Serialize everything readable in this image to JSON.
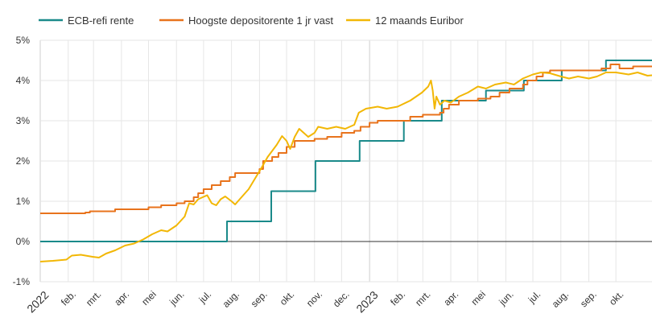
{
  "chart_data": {
    "type": "line",
    "ylim": [
      -1,
      5
    ],
    "y_ticks": [
      "-1%",
      "0%",
      "1%",
      "2%",
      "3%",
      "4%",
      "5%"
    ],
    "y_tick_values": [
      -1,
      0,
      1,
      2,
      3,
      4,
      5
    ],
    "x_range": [
      "2022-01-01",
      "2023-11-10"
    ],
    "x_ticks": [
      {
        "label": "2022",
        "date": "2022-01-01",
        "year": true
      },
      {
        "label": "feb.",
        "date": "2022-02-01"
      },
      {
        "label": "mrt.",
        "date": "2022-03-01"
      },
      {
        "label": "apr.",
        "date": "2022-04-01"
      },
      {
        "label": "mei",
        "date": "2022-05-01"
      },
      {
        "label": "jun.",
        "date": "2022-06-01"
      },
      {
        "label": "jul.",
        "date": "2022-07-01"
      },
      {
        "label": "aug.",
        "date": "2022-08-01"
      },
      {
        "label": "sep.",
        "date": "2022-09-01"
      },
      {
        "label": "okt.",
        "date": "2022-10-01"
      },
      {
        "label": "nov.",
        "date": "2022-11-01"
      },
      {
        "label": "dec.",
        "date": "2022-12-01"
      },
      {
        "label": "2023",
        "date": "2023-01-01",
        "year": true
      },
      {
        "label": "feb.",
        "date": "2023-02-01"
      },
      {
        "label": "mrt.",
        "date": "2023-03-01"
      },
      {
        "label": "apr.",
        "date": "2023-04-01"
      },
      {
        "label": "mei",
        "date": "2023-05-01"
      },
      {
        "label": "jun.",
        "date": "2023-06-01"
      },
      {
        "label": "jul.",
        "date": "2023-07-01"
      },
      {
        "label": "aug.",
        "date": "2023-08-01"
      },
      {
        "label": "sep.",
        "date": "2023-09-01"
      },
      {
        "label": "okt.",
        "date": "2023-10-01"
      }
    ],
    "grid": true,
    "legend_position": "top-left",
    "series": [
      {
        "name": "ECB-refi rente",
        "color": "#1a8a8a",
        "step": true,
        "points": [
          [
            "2022-01-01",
            0.0
          ],
          [
            "2022-07-27",
            0.5
          ],
          [
            "2022-09-14",
            1.25
          ],
          [
            "2022-11-02",
            2.0
          ],
          [
            "2022-12-21",
            2.5
          ],
          [
            "2023-02-08",
            3.0
          ],
          [
            "2023-03-22",
            3.5
          ],
          [
            "2023-05-10",
            3.75
          ],
          [
            "2023-06-21",
            4.0
          ],
          [
            "2023-08-02",
            4.25
          ],
          [
            "2023-09-20",
            4.5
          ],
          [
            "2023-11-10",
            4.5
          ]
        ]
      },
      {
        "name": "Hoogste depositorente 1 jr vast",
        "color": "#e8731c",
        "step": true,
        "points": [
          [
            "2022-01-01",
            0.7
          ],
          [
            "2022-02-20",
            0.72
          ],
          [
            "2022-02-25",
            0.75
          ],
          [
            "2022-03-25",
            0.8
          ],
          [
            "2022-05-01",
            0.85
          ],
          [
            "2022-05-15",
            0.9
          ],
          [
            "2022-06-01",
            0.95
          ],
          [
            "2022-06-10",
            1.0
          ],
          [
            "2022-06-20",
            1.1
          ],
          [
            "2022-06-25",
            1.2
          ],
          [
            "2022-07-01",
            1.3
          ],
          [
            "2022-07-10",
            1.4
          ],
          [
            "2022-07-20",
            1.5
          ],
          [
            "2022-07-30",
            1.6
          ],
          [
            "2022-08-05",
            1.7
          ],
          [
            "2022-09-01",
            1.8
          ],
          [
            "2022-09-05",
            2.0
          ],
          [
            "2022-09-15",
            2.1
          ],
          [
            "2022-09-22",
            2.2
          ],
          [
            "2022-10-01",
            2.35
          ],
          [
            "2022-10-10",
            2.5
          ],
          [
            "2022-11-01",
            2.55
          ],
          [
            "2022-11-15",
            2.6
          ],
          [
            "2022-12-01",
            2.7
          ],
          [
            "2022-12-15",
            2.75
          ],
          [
            "2022-12-22",
            2.85
          ],
          [
            "2023-01-01",
            2.95
          ],
          [
            "2023-01-10",
            3.0
          ],
          [
            "2023-02-15",
            3.1
          ],
          [
            "2023-03-01",
            3.15
          ],
          [
            "2023-03-20",
            3.2
          ],
          [
            "2023-03-24",
            3.3
          ],
          [
            "2023-03-30",
            3.4
          ],
          [
            "2023-04-10",
            3.5
          ],
          [
            "2023-05-01",
            3.55
          ],
          [
            "2023-05-15",
            3.6
          ],
          [
            "2023-05-25",
            3.7
          ],
          [
            "2023-06-05",
            3.8
          ],
          [
            "2023-06-20",
            3.9
          ],
          [
            "2023-06-25",
            4.0
          ],
          [
            "2023-07-05",
            4.1
          ],
          [
            "2023-07-12",
            4.2
          ],
          [
            "2023-07-20",
            4.25
          ],
          [
            "2023-09-15",
            4.3
          ],
          [
            "2023-09-25",
            4.4
          ],
          [
            "2023-10-05",
            4.3
          ],
          [
            "2023-10-20",
            4.35
          ],
          [
            "2023-11-10",
            4.35
          ]
        ]
      },
      {
        "name": "12 maands Euribor",
        "color": "#f2b705",
        "step": false,
        "points": [
          [
            "2022-01-01",
            -0.5
          ],
          [
            "2022-01-15",
            -0.48
          ],
          [
            "2022-01-30",
            -0.45
          ],
          [
            "2022-02-05",
            -0.35
          ],
          [
            "2022-02-15",
            -0.33
          ],
          [
            "2022-02-28",
            -0.38
          ],
          [
            "2022-03-07",
            -0.4
          ],
          [
            "2022-03-15",
            -0.3
          ],
          [
            "2022-03-25",
            -0.22
          ],
          [
            "2022-04-05",
            -0.1
          ],
          [
            "2022-04-15",
            -0.05
          ],
          [
            "2022-04-25",
            0.05
          ],
          [
            "2022-05-05",
            0.18
          ],
          [
            "2022-05-15",
            0.28
          ],
          [
            "2022-05-22",
            0.25
          ],
          [
            "2022-06-01",
            0.4
          ],
          [
            "2022-06-10",
            0.62
          ],
          [
            "2022-06-15",
            0.95
          ],
          [
            "2022-06-20",
            0.92
          ],
          [
            "2022-06-25",
            1.05
          ],
          [
            "2022-07-05",
            1.15
          ],
          [
            "2022-07-10",
            0.95
          ],
          [
            "2022-07-15",
            0.9
          ],
          [
            "2022-07-20",
            1.05
          ],
          [
            "2022-07-25",
            1.12
          ],
          [
            "2022-08-01",
            1.0
          ],
          [
            "2022-08-05",
            0.92
          ],
          [
            "2022-08-12",
            1.1
          ],
          [
            "2022-08-20",
            1.3
          ],
          [
            "2022-08-28",
            1.6
          ],
          [
            "2022-09-05",
            1.9
          ],
          [
            "2022-09-10",
            2.1
          ],
          [
            "2022-09-20",
            2.4
          ],
          [
            "2022-09-26",
            2.62
          ],
          [
            "2022-10-01",
            2.5
          ],
          [
            "2022-10-05",
            2.3
          ],
          [
            "2022-10-10",
            2.6
          ],
          [
            "2022-10-15",
            2.8
          ],
          [
            "2022-10-20",
            2.7
          ],
          [
            "2022-10-25",
            2.6
          ],
          [
            "2022-11-01",
            2.7
          ],
          [
            "2022-11-05",
            2.85
          ],
          [
            "2022-11-15",
            2.8
          ],
          [
            "2022-11-25",
            2.85
          ],
          [
            "2022-12-05",
            2.8
          ],
          [
            "2022-12-15",
            2.9
          ],
          [
            "2022-12-20",
            3.2
          ],
          [
            "2022-12-28",
            3.3
          ],
          [
            "2023-01-10",
            3.35
          ],
          [
            "2023-01-20",
            3.3
          ],
          [
            "2023-02-01",
            3.35
          ],
          [
            "2023-02-15",
            3.5
          ],
          [
            "2023-02-28",
            3.7
          ],
          [
            "2023-03-07",
            3.85
          ],
          [
            "2023-03-10",
            4.0
          ],
          [
            "2023-03-12",
            3.75
          ],
          [
            "2023-03-14",
            3.3
          ],
          [
            "2023-03-16",
            3.6
          ],
          [
            "2023-03-20",
            3.4
          ],
          [
            "2023-03-25",
            3.5
          ],
          [
            "2023-04-01",
            3.45
          ],
          [
            "2023-04-10",
            3.6
          ],
          [
            "2023-04-20",
            3.7
          ],
          [
            "2023-05-01",
            3.85
          ],
          [
            "2023-05-10",
            3.8
          ],
          [
            "2023-05-20",
            3.9
          ],
          [
            "2023-06-01",
            3.95
          ],
          [
            "2023-06-10",
            3.9
          ],
          [
            "2023-06-20",
            4.05
          ],
          [
            "2023-07-01",
            4.15
          ],
          [
            "2023-07-10",
            4.2
          ],
          [
            "2023-07-20",
            4.18
          ],
          [
            "2023-08-01",
            4.1
          ],
          [
            "2023-08-10",
            4.05
          ],
          [
            "2023-08-20",
            4.1
          ],
          [
            "2023-09-01",
            4.05
          ],
          [
            "2023-09-10",
            4.1
          ],
          [
            "2023-09-20",
            4.2
          ],
          [
            "2023-10-01",
            4.2
          ],
          [
            "2023-10-15",
            4.15
          ],
          [
            "2023-10-25",
            4.2
          ],
          [
            "2023-11-05",
            4.12
          ],
          [
            "2023-11-10",
            4.13
          ]
        ]
      }
    ]
  }
}
